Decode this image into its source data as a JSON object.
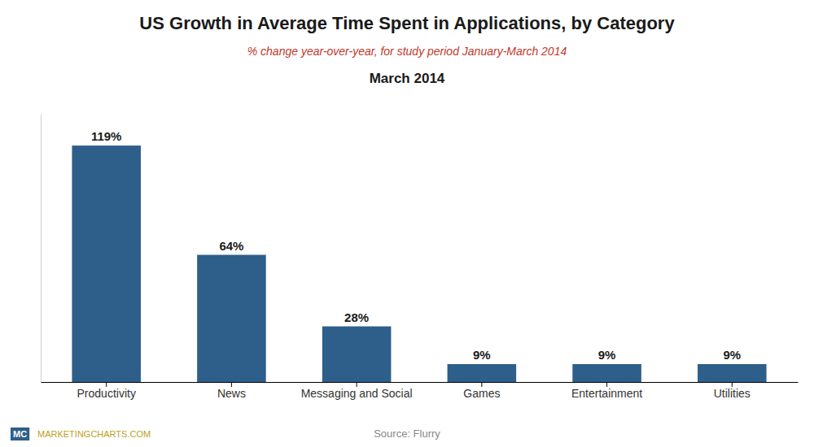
{
  "chart_data": {
    "type": "bar",
    "title": "US Growth in Average Time Spent in Applications, by Category",
    "subtitle": "% change year-over-year, for study period January-March 2014",
    "annotations": [
      "March 2014",
      "Source: Flurry",
      "MC",
      "MARKETINGCHARTS.COM"
    ],
    "categories": [
      "Productivity",
      "News",
      "Messaging and Social",
      "Games",
      "Entertainment",
      "Utilities"
    ],
    "values": [
      119,
      64,
      28,
      9,
      9,
      9
    ],
    "value_labels": [
      "119%",
      "64%",
      "28%",
      "9%",
      "9%",
      "9%"
    ],
    "color": "#2e5f8a",
    "ylim": [
      0,
      135
    ],
    "tick_labels": "x",
    "grid": false
  }
}
